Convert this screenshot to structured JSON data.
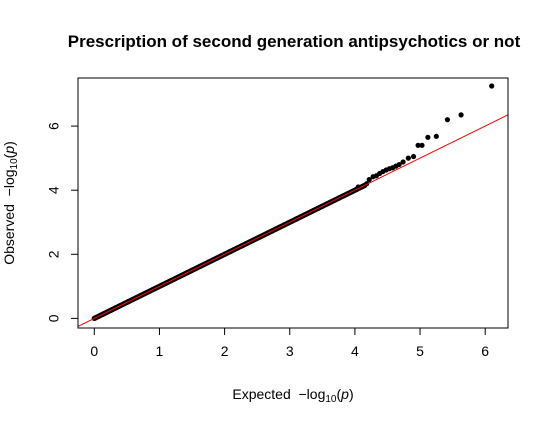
{
  "chart_data": {
    "type": "scatter",
    "title": "Prescription of second generation antipsychotics or not",
    "xlabel": "Expected  −log10(p)",
    "ylabel": "Observed  −log10(p)",
    "xlim": [
      -0.25,
      6.35
    ],
    "ylim": [
      -0.3,
      7.5
    ],
    "x_ticks": [
      0,
      1,
      2,
      3,
      4,
      5,
      6
    ],
    "y_ticks": [
      0,
      2,
      4,
      6
    ],
    "grid": false,
    "point_color": "#000000",
    "reference_line": {
      "label": "y = x",
      "color": "#ff0000"
    },
    "bulk_points": {
      "x_from": 0,
      "x_to": 4.15,
      "follows": "y = x"
    },
    "points": [
      {
        "x": 4.05,
        "y": 4.1
      },
      {
        "x": 4.12,
        "y": 4.12
      },
      {
        "x": 4.18,
        "y": 4.2
      },
      {
        "x": 4.22,
        "y": 4.33
      },
      {
        "x": 4.28,
        "y": 4.42
      },
      {
        "x": 4.33,
        "y": 4.45
      },
      {
        "x": 4.38,
        "y": 4.52
      },
      {
        "x": 4.43,
        "y": 4.58
      },
      {
        "x": 4.48,
        "y": 4.63
      },
      {
        "x": 4.53,
        "y": 4.67
      },
      {
        "x": 4.58,
        "y": 4.7
      },
      {
        "x": 4.63,
        "y": 4.75
      },
      {
        "x": 4.68,
        "y": 4.8
      },
      {
        "x": 4.74,
        "y": 4.88
      },
      {
        "x": 4.82,
        "y": 5.0
      },
      {
        "x": 4.9,
        "y": 5.05
      },
      {
        "x": 4.97,
        "y": 5.4
      },
      {
        "x": 5.03,
        "y": 5.4
      },
      {
        "x": 5.12,
        "y": 5.65
      },
      {
        "x": 5.25,
        "y": 5.68
      },
      {
        "x": 5.42,
        "y": 6.2
      },
      {
        "x": 5.63,
        "y": 6.35
      },
      {
        "x": 6.1,
        "y": 7.25
      }
    ]
  }
}
